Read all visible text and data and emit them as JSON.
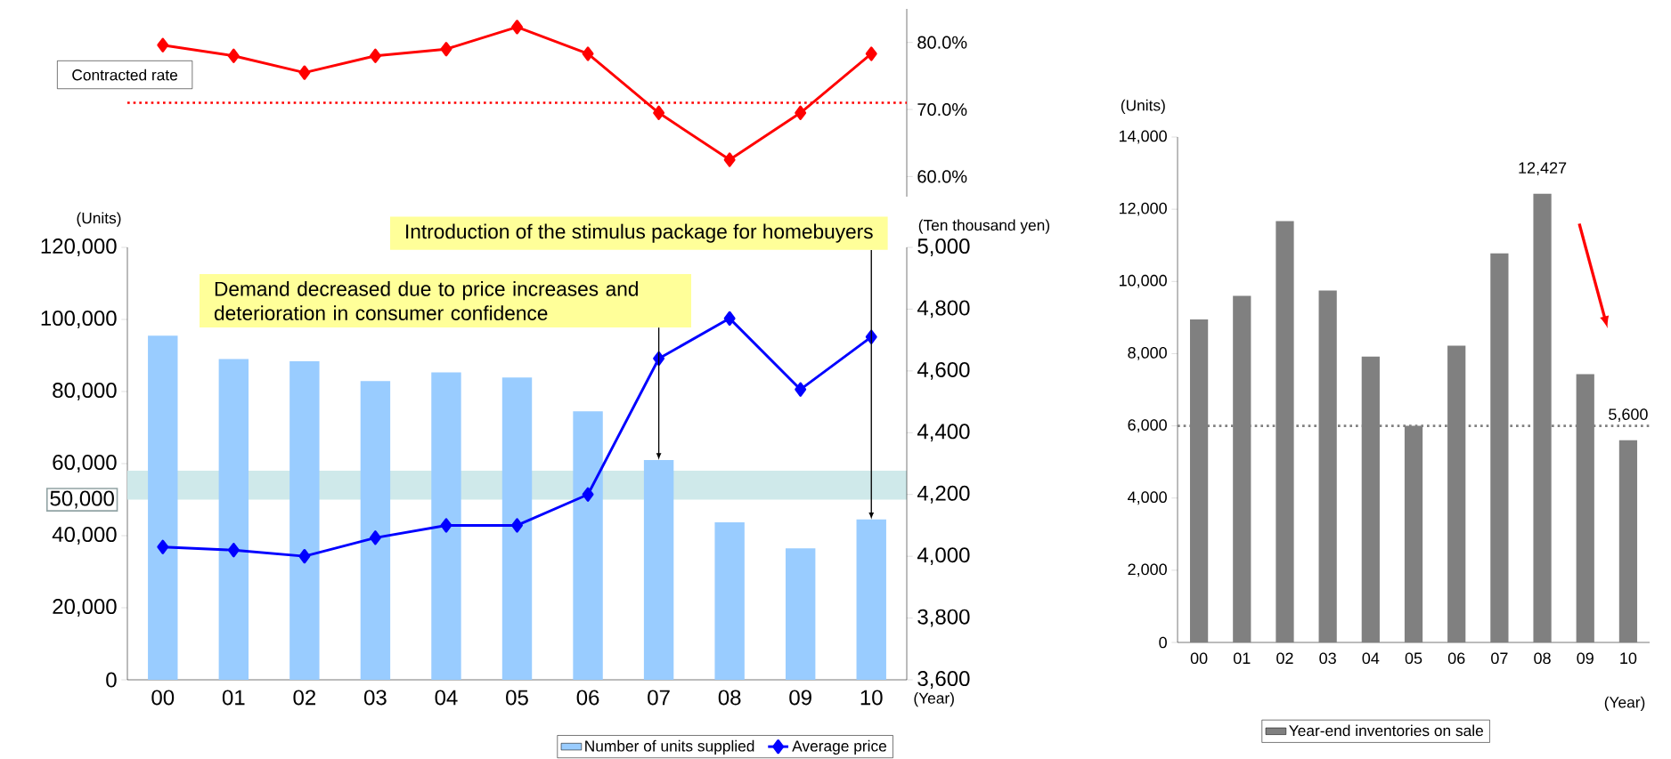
{
  "chart_data": [
    {
      "type": "line",
      "categories": [
        null,
        null,
        null,
        null,
        null,
        null,
        null,
        null,
        null,
        null,
        null
      ],
      "tick_labels": "y",
      "ylim": [
        57,
        85
      ],
      "yticks": [
        {
          "value": 60,
          "label": "60.0%"
        },
        {
          "value": 70,
          "label": "70.0%"
        },
        {
          "value": 80,
          "label": "80.0%"
        }
      ],
      "marker": "diamond",
      "series": [
        {
          "name": "Contracted rate",
          "color": "#ff0000",
          "values": [
            79.6,
            78.0,
            75.5,
            78.0,
            79.0,
            82.3,
            78.3,
            69.5,
            62.5,
            69.5,
            78.3
          ]
        }
      ],
      "ref_lines": [
        {
          "axis": "y",
          "value": 71,
          "color": "#ff0000",
          "line_style": "dotted"
        }
      ]
    },
    {
      "type": "bar",
      "categories": [
        "00",
        "01",
        "02",
        "03",
        "04",
        "05",
        "06",
        "07",
        "08",
        "09",
        "10"
      ],
      "xlabel": "(Year)",
      "ylabel": "(Units)",
      "y2label": "(Ten thousand yen)",
      "ylim": [
        0,
        120000
      ],
      "yticks": [
        0,
        {
          "value": 20000,
          "label": "20,000"
        },
        {
          "value": 40000,
          "label": "40,000"
        },
        {
          "value": 60000,
          "label": "60,000"
        },
        {
          "value": 80000,
          "label": "80,000"
        },
        {
          "value": 100000,
          "label": "100,000"
        },
        {
          "value": 120000,
          "label": "120,000"
        }
      ],
      "y2lim": [
        3600,
        5000
      ],
      "y2ticks": [
        {
          "value": 3600,
          "label": "3,600"
        },
        {
          "value": 3800,
          "label": "3,800"
        },
        {
          "value": 4000,
          "label": "4,000"
        },
        {
          "value": 4200,
          "label": "4,200"
        },
        {
          "value": 4400,
          "label": "4,400"
        },
        {
          "value": 4600,
          "label": "4,600"
        },
        {
          "value": 4800,
          "label": "4,800"
        },
        {
          "value": 5000,
          "label": "5,000"
        }
      ],
      "marker": "diamond",
      "legend": "bottom",
      "series": [
        {
          "name": "Number of units supplied",
          "color": "#99ccff",
          "values": [
            95500,
            89000,
            88400,
            82900,
            85300,
            83900,
            74500,
            61000,
            43700,
            36500,
            44500
          ]
        },
        {
          "name": "Average price",
          "type": "line",
          "axis": "y2",
          "color": "#0000ff",
          "values": [
            4030,
            4020,
            4000,
            4060,
            4100,
            4100,
            4200,
            4640,
            4770,
            4540,
            4710
          ]
        }
      ],
      "bands": [
        {
          "axis": "y",
          "from": 50000,
          "to": 58000,
          "label": "50,000",
          "color": "#cfe9ea"
        }
      ],
      "annotations": [
        {
          "text": "Demand decreased due to price increases and deterioration in consumer confidence",
          "x": "07",
          "y": 61000
        },
        {
          "text": "Introduction of the stimulus package for homebuyers",
          "x": "10",
          "y": 44500
        }
      ]
    },
    {
      "type": "bar",
      "categories": [
        "00",
        "01",
        "02",
        "03",
        "04",
        "05",
        "06",
        "07",
        "08",
        "09",
        "10"
      ],
      "xlabel": "(Year)",
      "ylabel": "(Units)",
      "ylim": [
        0,
        14000
      ],
      "yticks": [
        0,
        {
          "value": 2000,
          "label": "2,000"
        },
        {
          "value": 4000,
          "label": "4,000"
        },
        {
          "value": 6000,
          "label": "6,000"
        },
        {
          "value": 8000,
          "label": "8,000"
        },
        {
          "value": 10000,
          "label": "10,000"
        },
        {
          "value": 12000,
          "label": "12,000"
        },
        {
          "value": 14000,
          "label": "14,000"
        }
      ],
      "legend": "bottom",
      "series": [
        {
          "name": "Year-end inventories on sale",
          "color": "#808080",
          "values": [
            8950,
            9600,
            11670,
            9750,
            7920,
            6000,
            8220,
            10780,
            12427,
            7430,
            5600
          ],
          "value_labels": [
            null,
            null,
            null,
            null,
            null,
            null,
            null,
            null,
            "12,427",
            null,
            "5,600"
          ]
        }
      ],
      "ref_lines": [
        {
          "axis": "y",
          "value": 6000,
          "color": "#808080",
          "line_style": "dotted"
        }
      ]
    }
  ]
}
